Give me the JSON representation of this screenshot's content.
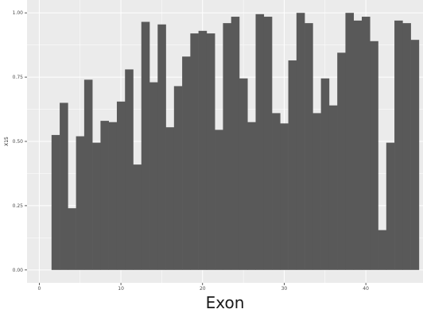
{
  "chart_data": {
    "type": "bar",
    "title": "",
    "xlabel": "Exon",
    "ylabel": "X15",
    "x": [
      1,
      2,
      3,
      4,
      5,
      6,
      7,
      8,
      9,
      10,
      11,
      12,
      13,
      14,
      15,
      16,
      17,
      18,
      19,
      20,
      21,
      22,
      23,
      24,
      25,
      26,
      27,
      28,
      29,
      30,
      31,
      32,
      33,
      34,
      35,
      36,
      37,
      38,
      39,
      40,
      41,
      42,
      43,
      44,
      45,
      46
    ],
    "values": [
      0.0,
      0.525,
      0.65,
      0.24,
      0.52,
      0.74,
      0.495,
      0.58,
      0.575,
      0.655,
      0.78,
      0.41,
      0.965,
      0.73,
      0.955,
      0.555,
      0.715,
      0.83,
      0.92,
      0.93,
      0.92,
      0.545,
      0.96,
      0.985,
      0.745,
      0.575,
      0.995,
      0.985,
      0.61,
      0.57,
      0.815,
      1.0,
      0.96,
      0.61,
      0.745,
      0.64,
      0.845,
      1.0,
      0.97,
      0.985,
      0.89,
      0.155,
      0.495,
      0.97,
      0.96,
      0.895
    ],
    "xlim": [
      -1.5,
      47
    ],
    "ylim": [
      -0.05,
      1.05
    ],
    "xticks": [
      0,
      10,
      20,
      30,
      40
    ],
    "xtick_labels": [
      "0",
      "10",
      "20",
      "30",
      "40"
    ],
    "yticks": [
      0.0,
      0.25,
      0.5,
      0.75,
      1.0
    ],
    "ytick_labels": [
      "0.00",
      "0.25",
      "0.50",
      "0.75",
      "1.00"
    ],
    "grid": true,
    "colors": {
      "bar": "#595959",
      "panel": "#ebebeb",
      "grid": "#ffffff"
    }
  }
}
